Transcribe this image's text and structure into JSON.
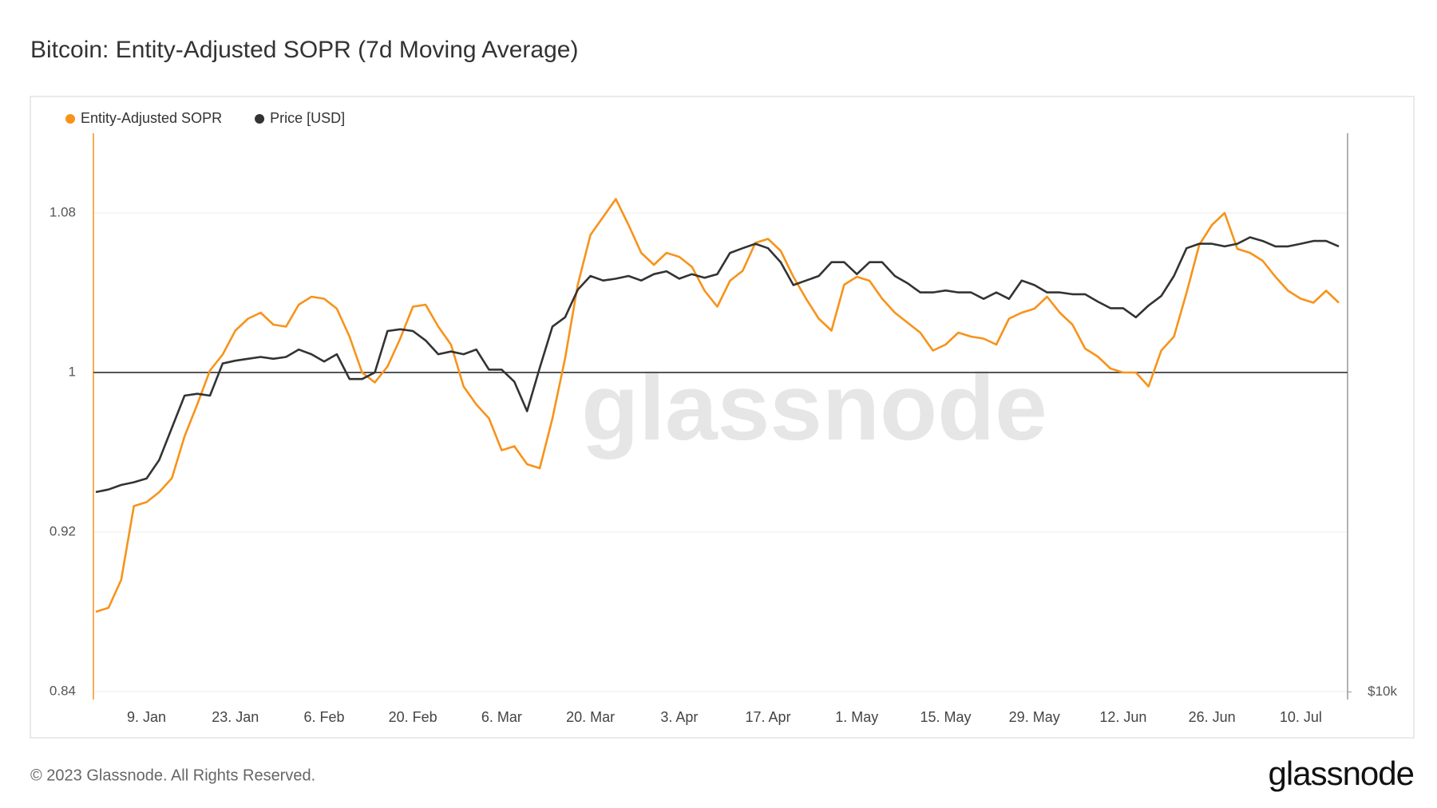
{
  "chart_data": {
    "type": "line",
    "title": "Bitcoin: Entity-Adjusted SOPR (7d Moving Average)",
    "watermark": "glassnode",
    "footer": "© 2023 Glassnode. All Rights Reserved.",
    "brand": "glassnode",
    "categories": [
      null,
      null,
      null,
      null,
      "9. Jan",
      null,
      null,
      null,
      null,
      null,
      null,
      "23. Jan",
      null,
      null,
      null,
      null,
      null,
      null,
      "6. Feb",
      null,
      null,
      null,
      null,
      null,
      null,
      "20. Feb",
      null,
      null,
      null,
      null,
      null,
      null,
      "6. Mar",
      null,
      null,
      null,
      null,
      null,
      null,
      "20. Mar",
      null,
      null,
      null,
      null,
      null,
      null,
      "3. Apr",
      null,
      null,
      null,
      null,
      null,
      null,
      "17. Apr",
      null,
      null,
      null,
      null,
      null,
      null,
      "1. May",
      null,
      null,
      null,
      null,
      null,
      null,
      "15. May",
      null,
      null,
      null,
      null,
      null,
      null,
      "29. May",
      null,
      null,
      null,
      null,
      null,
      null,
      "12. Jun",
      null,
      null,
      null,
      null,
      null,
      null,
      "26. Jun",
      null,
      null,
      null,
      null,
      null,
      null,
      "10. Jul",
      null,
      null,
      null
    ],
    "ylim": [
      0.836,
      1.12
    ],
    "yticks": [
      0.84,
      0.92,
      1,
      1.08
    ],
    "y2lim": [
      9820,
      38700
    ],
    "y2log": true,
    "y2ticks": [
      {
        "value": 10000,
        "label": "$10k"
      }
    ],
    "grid": true,
    "reference_line": 1,
    "legend": "top-left",
    "series": [
      {
        "name": "Entity-Adjusted SOPR",
        "color": "#f7931a",
        "axis": "y",
        "values": [
          0.88,
          0.882,
          0.896,
          0.933,
          0.935,
          0.94,
          0.947,
          0.968,
          0.984,
          1.001,
          1.009,
          1.021,
          1.027,
          1.03,
          1.024,
          1.023,
          1.034,
          1.038,
          1.037,
          1.032,
          1.018,
          1.0,
          0.995,
          1.003,
          1.017,
          1.033,
          1.034,
          1.023,
          1.014,
          0.993,
          0.984,
          0.977,
          0.961,
          0.963,
          0.954,
          0.952,
          0.977,
          1.007,
          1.044,
          1.069,
          1.078,
          1.087,
          1.074,
          1.06,
          1.054,
          1.06,
          1.058,
          1.053,
          1.041,
          1.033,
          1.046,
          1.051,
          1.065,
          1.067,
          1.061,
          1.048,
          1.037,
          1.027,
          1.021,
          1.044,
          1.048,
          1.046,
          1.037,
          1.03,
          1.025,
          1.02,
          1.011,
          1.014,
          1.02,
          1.018,
          1.017,
          1.014,
          1.027,
          1.03,
          1.032,
          1.038,
          1.03,
          1.024,
          1.012,
          1.008,
          1.002,
          1.0,
          1.0,
          0.993,
          1.011,
          1.018,
          1.04,
          1.064,
          1.074,
          1.08,
          1.062,
          1.06,
          1.056,
          1.048,
          1.041,
          1.037,
          1.035,
          1.041,
          1.035
        ]
      },
      {
        "name": "Price [USD]",
        "color": "#333333",
        "axis": "y2",
        "values": [
          16230,
          16330,
          16510,
          16620,
          16770,
          17540,
          18960,
          20500,
          20590,
          20500,
          22160,
          22310,
          22410,
          22510,
          22410,
          22510,
          22920,
          22660,
          22260,
          22660,
          21340,
          21340,
          21680,
          23970,
          24070,
          23970,
          23430,
          22660,
          22810,
          22660,
          22920,
          21830,
          21830,
          21200,
          19740,
          21930,
          24230,
          24780,
          26490,
          27390,
          27090,
          27210,
          27390,
          27090,
          27510,
          27700,
          27210,
          27510,
          27270,
          27510,
          28960,
          29290,
          29610,
          29290,
          28320,
          26790,
          27090,
          27390,
          28320,
          28320,
          27510,
          28320,
          28320,
          27390,
          26910,
          26320,
          26320,
          26440,
          26320,
          26320,
          25910,
          26320,
          25910,
          27090,
          26790,
          26320,
          26320,
          26200,
          26200,
          25740,
          25330,
          25330,
          24780,
          25500,
          26090,
          27390,
          29290,
          29610,
          29610,
          29420,
          29610,
          30080,
          29810,
          29420,
          29420,
          29610,
          29810,
          29810,
          29420
        ]
      }
    ]
  }
}
